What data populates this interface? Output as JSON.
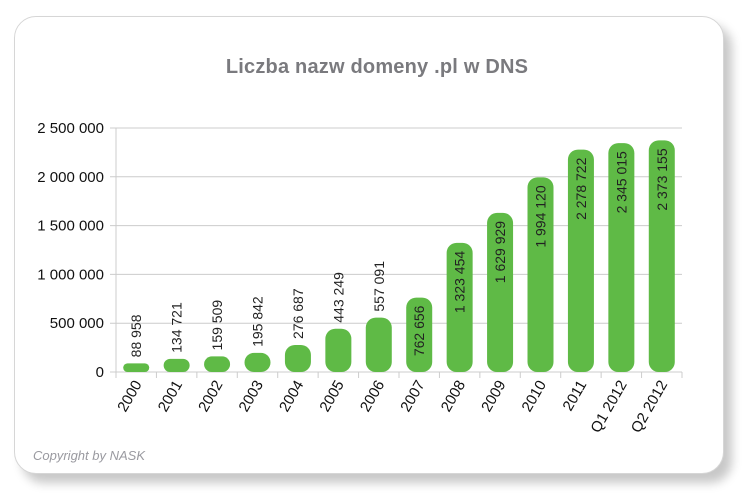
{
  "page": {
    "title": "Liczba nazw domeny .pl w DNS",
    "copyright": "Copyright by NASK"
  },
  "colors": {
    "bar": "#5fba46",
    "grid": "#cccccc",
    "title": "#7a7a7e",
    "copyright": "#9a9aa0"
  },
  "chart_data": {
    "type": "bar",
    "title": "Liczba nazw domeny .pl w DNS",
    "xlabel": "",
    "ylabel": "",
    "ylim": [
      0,
      2500000
    ],
    "yticks": [
      0,
      500000,
      1000000,
      1500000,
      2000000,
      2500000
    ],
    "ytick_labels": [
      "0",
      "500 000",
      "1 000 000",
      "1 500 000",
      "2 000 000",
      "2 500 000"
    ],
    "grid": true,
    "legend": null,
    "categories": [
      "2000",
      "2001",
      "2002",
      "2003",
      "2004",
      "2005",
      "2006",
      "2007",
      "2008",
      "2009",
      "2010",
      "2011",
      "Q1 2012",
      "Q2 2012"
    ],
    "values": [
      88958,
      134721,
      159509,
      195842,
      276687,
      443249,
      557091,
      762656,
      1323454,
      1629929,
      1994120,
      2278722,
      2345015,
      2373155
    ],
    "value_labels": [
      "88 958",
      "134 721",
      "159 509",
      "195 842",
      "276 687",
      "443 249",
      "557 091",
      "762 656",
      "1 323 454",
      "1 629 929",
      "1 994 120",
      "2 278 722",
      "2 345 015",
      "2 373 155"
    ],
    "annotations": [
      "Copyright by NASK"
    ]
  }
}
